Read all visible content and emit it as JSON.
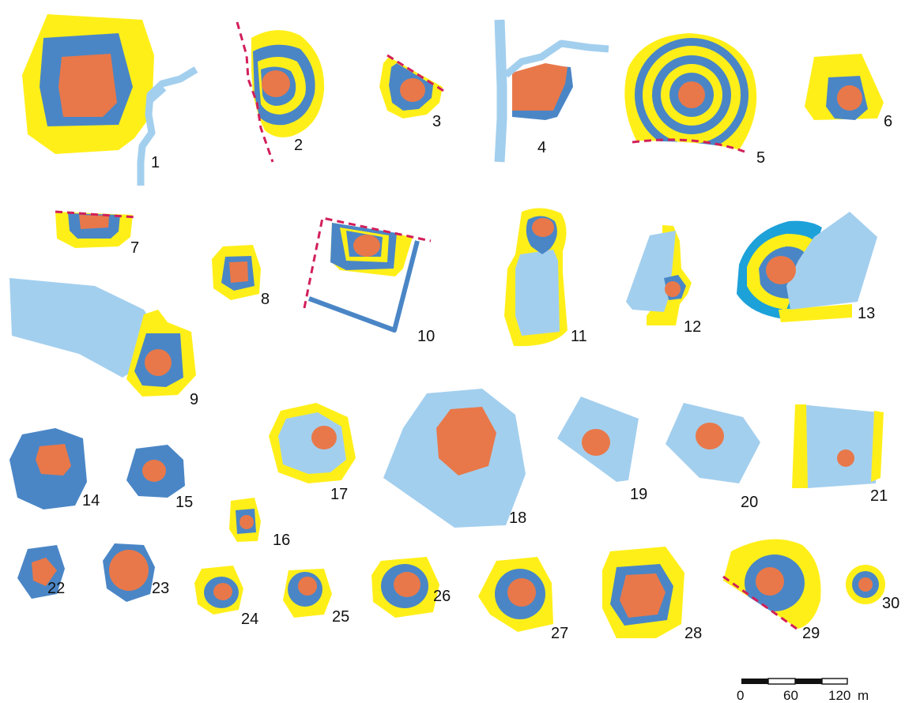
{
  "colors": {
    "yellow": "#FFEF19",
    "dark_blue": "#4A86C6",
    "light_blue": "#A3CFEE",
    "orange": "#E8784A",
    "cyan": "#1DA1D9",
    "red_dashed": "#D21F5A",
    "black": "#111111"
  },
  "labels": [
    "1",
    "2",
    "3",
    "4",
    "5",
    "6",
    "7",
    "8",
    "9",
    "10",
    "11",
    "12",
    "13",
    "14",
    "15",
    "16",
    "17",
    "18",
    "19",
    "20",
    "21",
    "22",
    "23",
    "24",
    "25",
    "26",
    "27",
    "28",
    "29",
    "30"
  ],
  "scale_bar": {
    "ticks": [
      "0",
      "60",
      "120"
    ],
    "unit": "m"
  }
}
